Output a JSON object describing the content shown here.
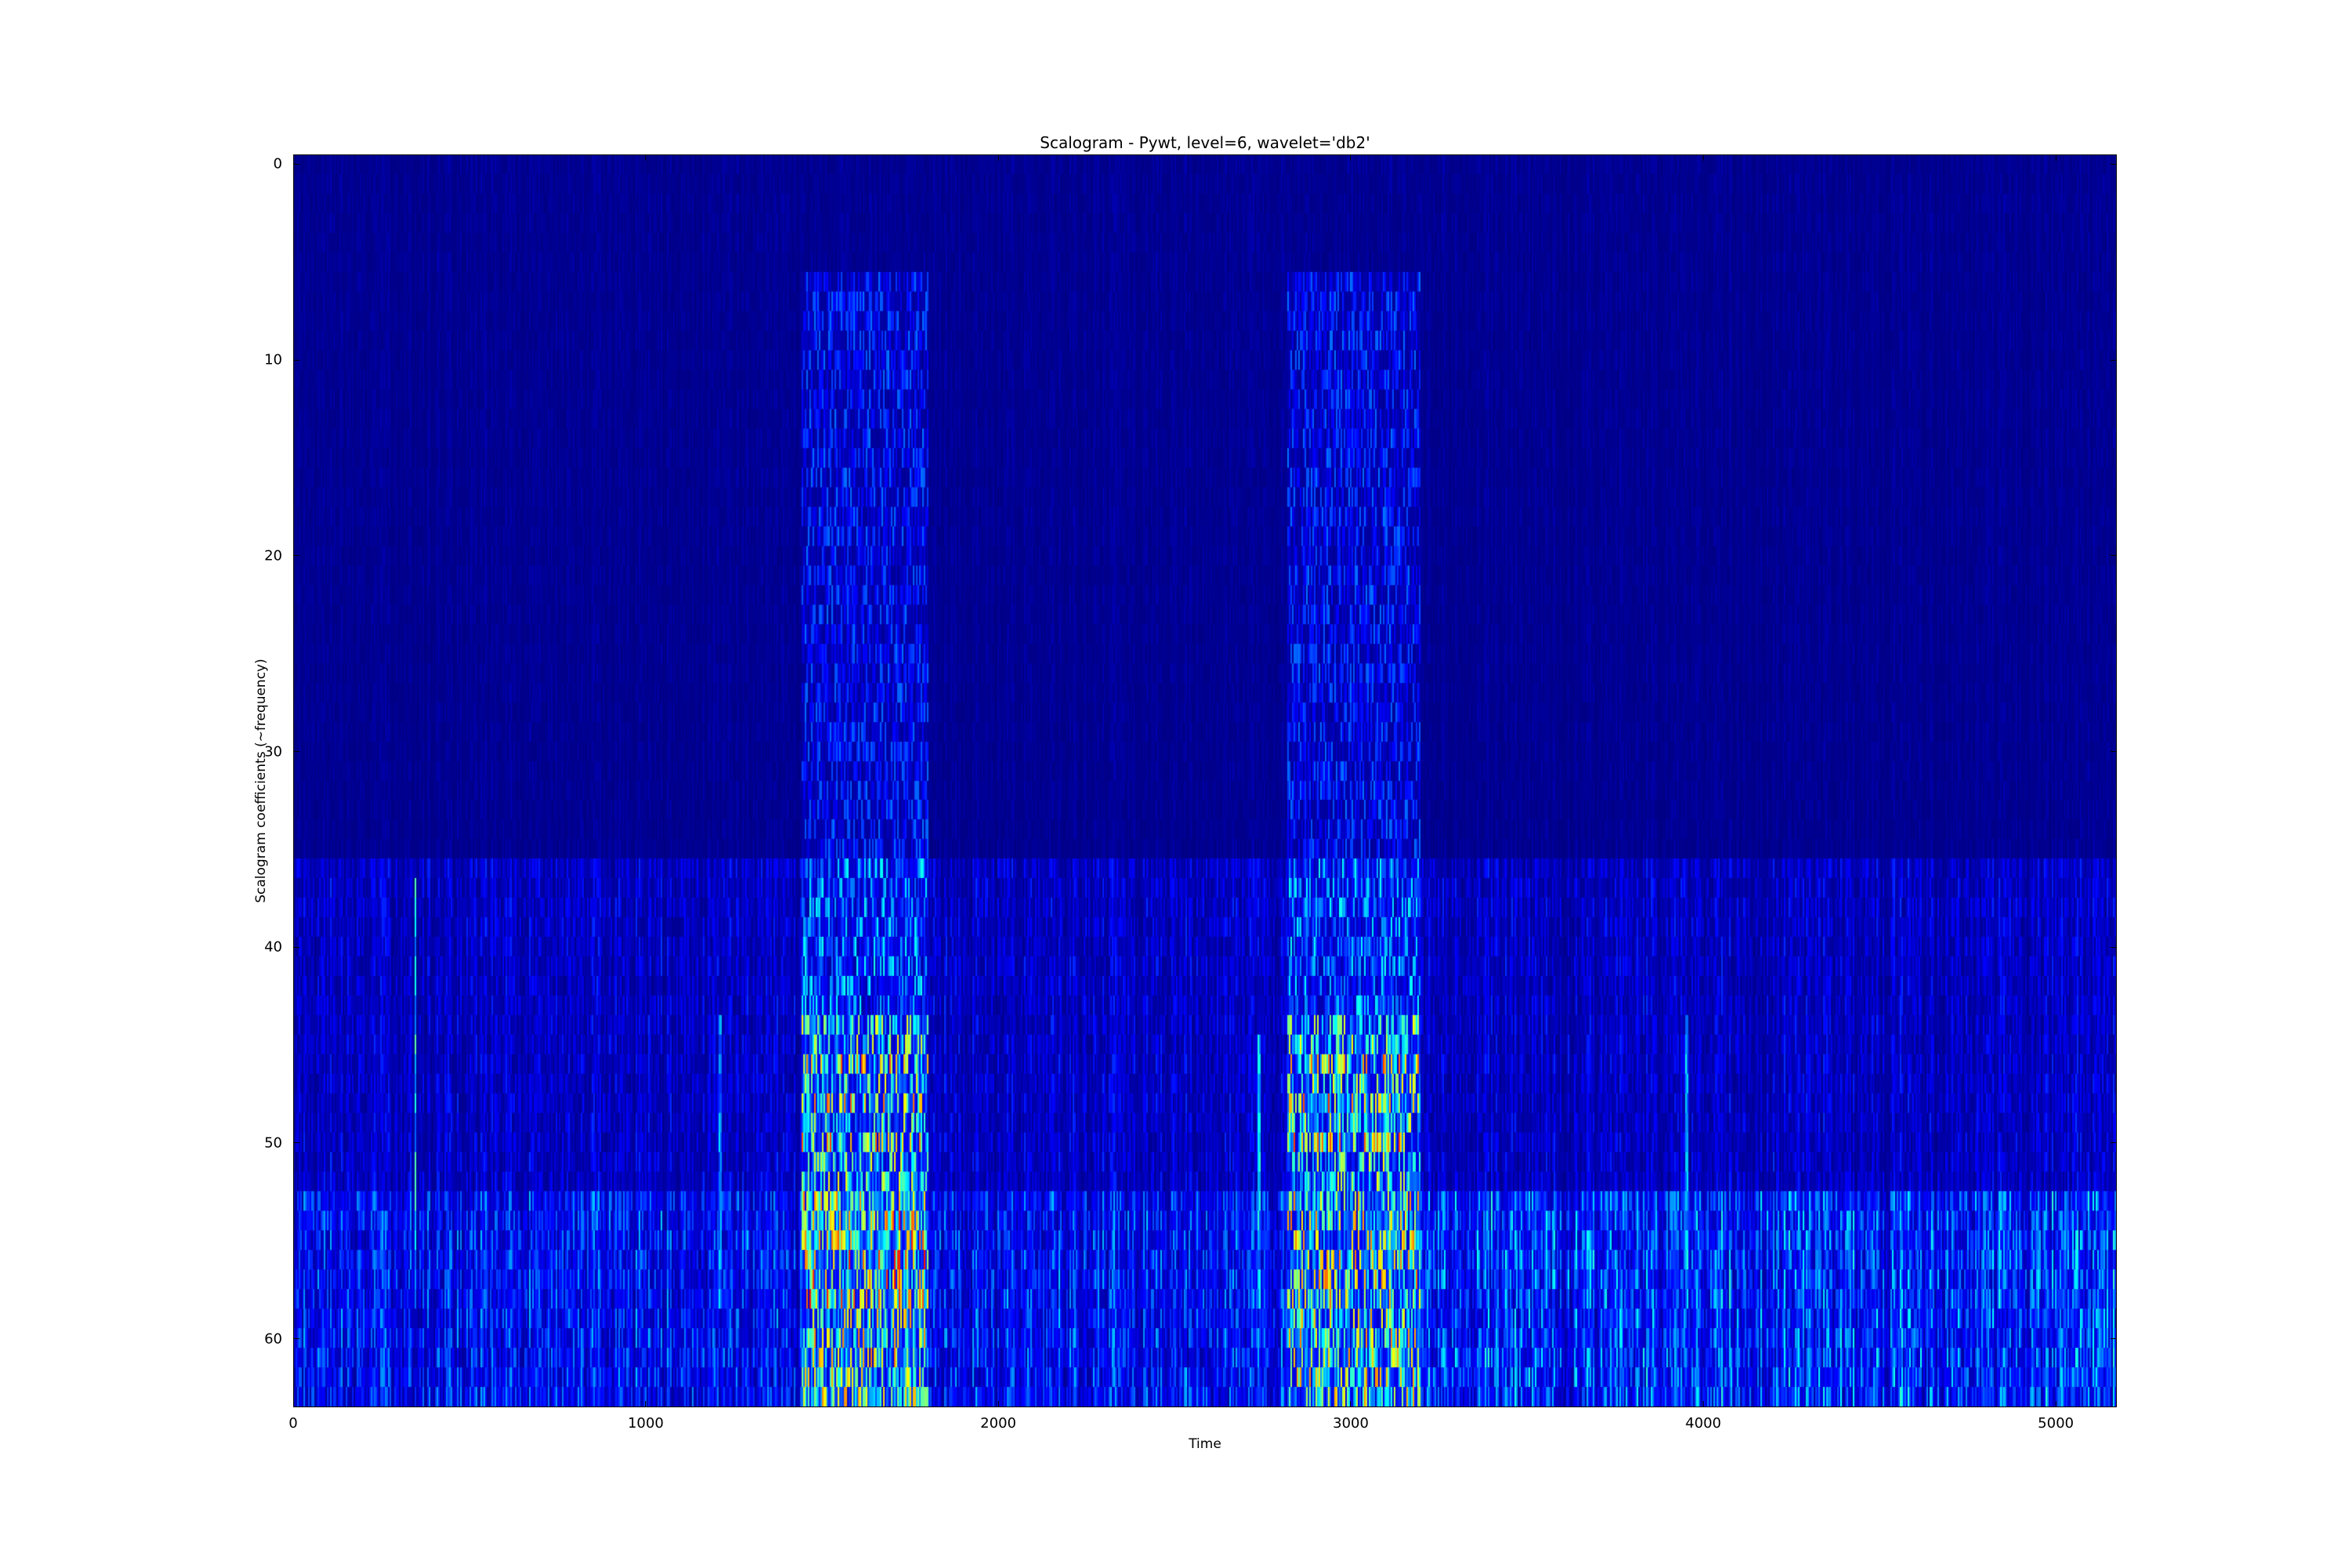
{
  "chart_data": {
    "type": "heatmap",
    "title": "Scalogram - Pywt, level=6, wavelet='db2'",
    "xlabel": "Time",
    "ylabel": "Scalogram coefficients (~frequency)",
    "xlim": [
      0,
      5173
    ],
    "ylim": [
      63.5,
      -0.5
    ],
    "rows": 64,
    "colormap": "jet",
    "xticks": [
      "0",
      "1000",
      "2000",
      "3000",
      "4000",
      "5000"
    ],
    "yticks": [
      "0",
      "10",
      "20",
      "30",
      "40",
      "50",
      "60"
    ],
    "grid": false,
    "background_level": {
      "rows_0_35": 0.02,
      "rows_36_52": 0.07,
      "rows_53_63": 0.13
    },
    "bursts": [
      {
        "time_start": 1440,
        "time_end": 1800,
        "row_start": 6,
        "row_end": 63,
        "peak_rows": [
          54,
          58
        ],
        "peak_value": 0.8
      },
      {
        "time_start": 2820,
        "time_end": 3200,
        "row_start": 6,
        "row_end": 63,
        "peak_rows": [
          54,
          58
        ],
        "peak_value": 0.7
      }
    ],
    "spikes": [
      {
        "time": 345,
        "row_start": 37,
        "row_end": 58,
        "value": 0.45
      },
      {
        "time": 1210,
        "row_start": 44,
        "row_end": 58,
        "value": 0.35
      },
      {
        "time": 2740,
        "row_start": 45,
        "row_end": 58,
        "value": 0.4
      },
      {
        "time": 3955,
        "row_start": 44,
        "row_end": 58,
        "value": 0.4
      }
    ]
  }
}
